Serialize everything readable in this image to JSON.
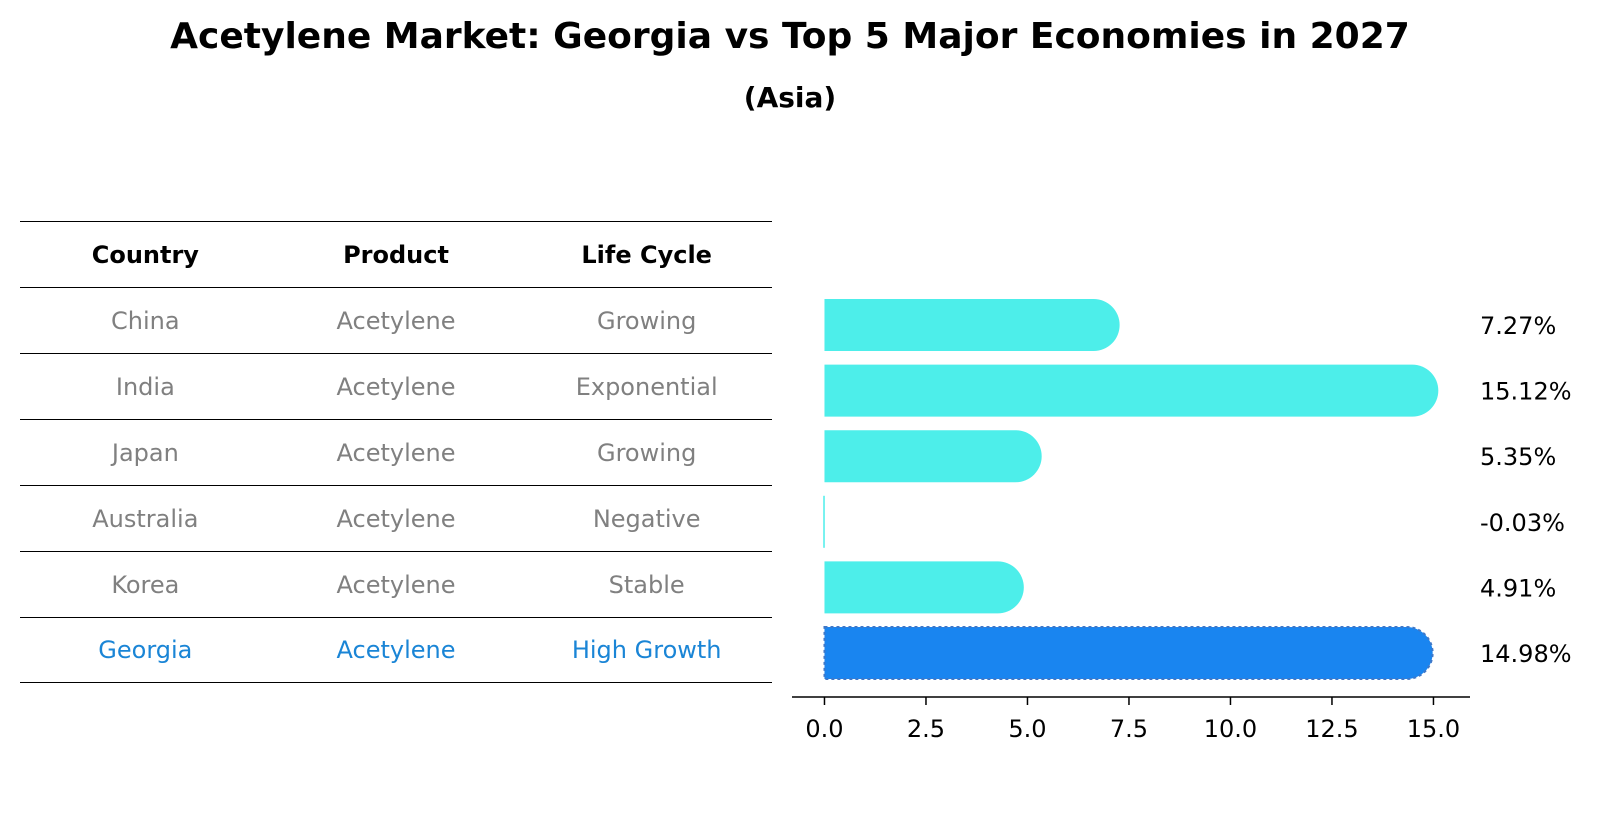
{
  "title": "Acetylene Market: Georgia vs Top 5 Major Economies in 2027",
  "subtitle": "(Asia)",
  "colors": {
    "bar": "#4deeea",
    "highlight_bar": "#1985f0",
    "highlight_text": "#1a85d6",
    "muted_text": "#808080"
  },
  "table": {
    "headers": [
      "Country",
      "Product",
      "Life Cycle"
    ],
    "rows": [
      {
        "country": "China",
        "product": "Acetylene",
        "life_cycle": "Growing"
      },
      {
        "country": "India",
        "product": "Acetylene",
        "life_cycle": "Exponential"
      },
      {
        "country": "Japan",
        "product": "Acetylene",
        "life_cycle": "Growing"
      },
      {
        "country": "Australia",
        "product": "Acetylene",
        "life_cycle": "Negative"
      },
      {
        "country": "Korea",
        "product": "Acetylene",
        "life_cycle": "Stable"
      },
      {
        "country": "Georgia",
        "product": "Acetylene",
        "life_cycle": "High Growth"
      }
    ]
  },
  "chart_data": {
    "type": "bar",
    "orientation": "horizontal",
    "title": "Acetylene Market: Georgia vs Top 5 Major Economies in 2027",
    "subtitle": "(Asia)",
    "categories": [
      "China",
      "India",
      "Japan",
      "Australia",
      "Korea",
      "Georgia"
    ],
    "values": [
      7.27,
      15.12,
      5.35,
      -0.03,
      4.91,
      14.98
    ],
    "value_labels": [
      "7.27%",
      "15.12%",
      "5.35%",
      "-0.03%",
      "4.91%",
      "14.98%"
    ],
    "highlight": "Georgia",
    "xlim": [
      -0.8,
      15.9
    ],
    "xticks": [
      0,
      2.5,
      5,
      7.5,
      10,
      12.5,
      15
    ],
    "xtick_labels": [
      "0.0",
      "2.5",
      "5.0",
      "7.5",
      "10.0",
      "12.5",
      "15.0"
    ],
    "xlabel": "",
    "ylabel": "",
    "grid": false,
    "legend": "none"
  }
}
